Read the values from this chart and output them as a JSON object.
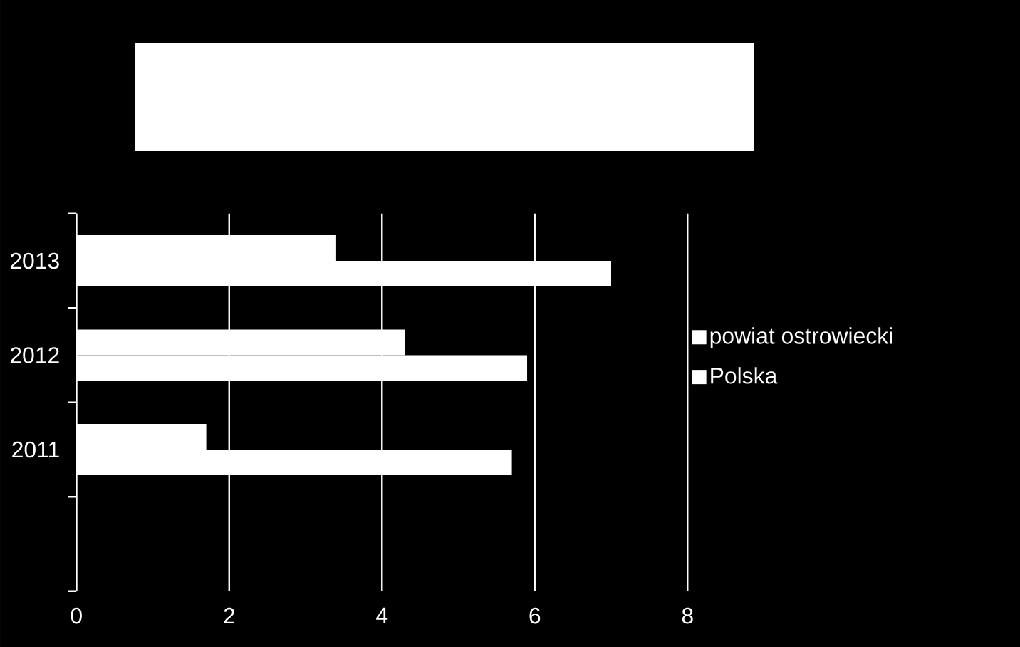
{
  "chart_data": {
    "type": "bar",
    "orientation": "horizontal",
    "categories": [
      "2013",
      "2012",
      "2011",
      null
    ],
    "series": [
      {
        "name": "powiat ostrowiecki",
        "color": "#ffffff",
        "values": [
          3.4,
          4.3,
          1.7,
          null
        ]
      },
      {
        "name": "Polska",
        "color": "#ffffff",
        "values": [
          7.0,
          5.9,
          5.7,
          null
        ]
      }
    ],
    "xlim": [
      0,
      8
    ],
    "xticks": [
      0,
      2,
      4,
      6,
      8
    ],
    "grid": "x",
    "legend": "right"
  }
}
